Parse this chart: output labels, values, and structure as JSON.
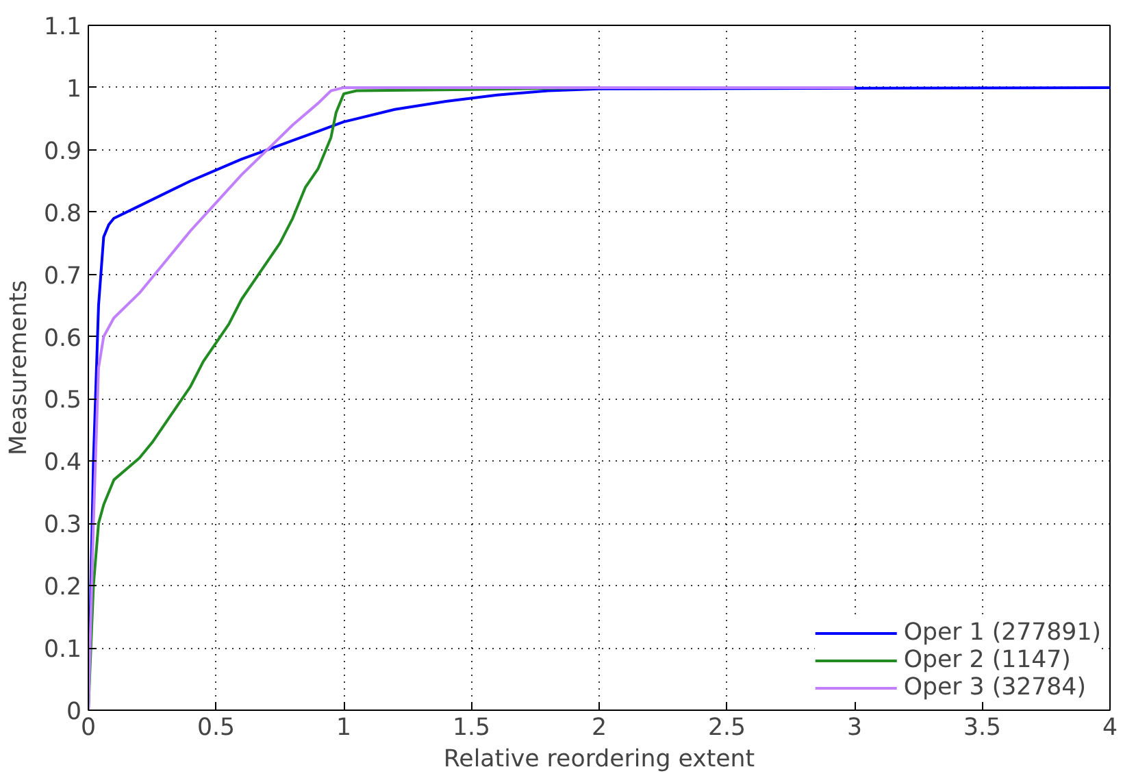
{
  "chart_data": {
    "type": "line",
    "xlabel": "Relative reordering extent",
    "ylabel": "Measurements",
    "xlim": [
      0,
      4
    ],
    "ylim": [
      0,
      1.1
    ],
    "xticks": [
      0,
      0.5,
      1,
      1.5,
      2,
      2.5,
      3,
      3.5,
      4
    ],
    "yticks": [
      0,
      0.1,
      0.2,
      0.3,
      0.4,
      0.5,
      0.6,
      0.7,
      0.8,
      0.9,
      1,
      1.1
    ],
    "grid": true,
    "legend": "bottom right",
    "line_style": "solid",
    "marker": "none",
    "series": [
      {
        "name": "Oper 1 (277891)",
        "color": "#0000ff",
        "x": [
          0,
          0.02,
          0.04,
          0.06,
          0.08,
          0.1,
          0.2,
          0.4,
          0.6,
          0.7,
          0.8,
          0.9,
          1.0,
          1.2,
          1.4,
          1.6,
          1.8,
          2.0,
          4
        ],
        "values": [
          0,
          0.4,
          0.65,
          0.76,
          0.78,
          0.79,
          0.81,
          0.85,
          0.885,
          0.9,
          0.915,
          0.93,
          0.945,
          0.965,
          0.978,
          0.988,
          0.995,
          0.998,
          1
        ]
      },
      {
        "name": "Oper 2 (1147)",
        "color": "#228b22",
        "x": [
          0,
          0.02,
          0.04,
          0.06,
          0.1,
          0.2,
          0.25,
          0.3,
          0.35,
          0.4,
          0.45,
          0.5,
          0.55,
          0.6,
          0.65,
          0.7,
          0.75,
          0.8,
          0.85,
          0.9,
          0.95,
          0.97,
          1.0,
          1.05,
          1.5,
          2,
          3
        ],
        "values": [
          0,
          0.2,
          0.3,
          0.33,
          0.37,
          0.405,
          0.43,
          0.46,
          0.49,
          0.52,
          0.56,
          0.59,
          0.62,
          0.66,
          0.69,
          0.72,
          0.75,
          0.79,
          0.84,
          0.87,
          0.92,
          0.96,
          0.99,
          0.995,
          0.997,
          1,
          1
        ]
      },
      {
        "name": "Oper 3 (32784)",
        "color": "#c080ff",
        "x": [
          0,
          0.02,
          0.04,
          0.06,
          0.1,
          0.2,
          0.3,
          0.4,
          0.5,
          0.6,
          0.7,
          0.8,
          0.9,
          0.95,
          1.0,
          3
        ],
        "values": [
          0,
          0.3,
          0.55,
          0.6,
          0.63,
          0.67,
          0.72,
          0.77,
          0.815,
          0.86,
          0.9,
          0.94,
          0.975,
          0.995,
          1,
          1
        ]
      }
    ]
  }
}
